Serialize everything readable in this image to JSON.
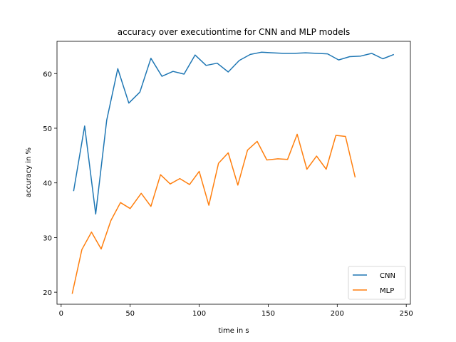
{
  "chart_data": {
    "type": "line",
    "title": "accuracy over executiontime for CNN and MLP models",
    "xlabel": "time in s",
    "ylabel": "accuracy in %",
    "xlim": [
      -3,
      253
    ],
    "ylim": [
      17.8,
      65.9
    ],
    "xticks": [
      0,
      50,
      100,
      150,
      200,
      250
    ],
    "yticks": [
      20,
      30,
      40,
      50,
      60
    ],
    "grid": false,
    "legend_position": "bottom-right",
    "series": [
      {
        "name": "CNN",
        "color": "#1f77b4",
        "x": [
          9,
          17,
          25,
          33,
          41,
          49,
          57,
          65,
          73,
          81,
          89,
          97,
          105,
          113,
          121,
          129,
          137,
          145,
          153,
          161,
          169,
          177,
          185,
          193,
          201,
          209,
          217,
          225,
          233,
          241
        ],
        "y": [
          38.5,
          50.4,
          34.3,
          51.5,
          60.9,
          54.6,
          56.6,
          62.8,
          59.5,
          60.4,
          59.9,
          63.4,
          61.5,
          61.9,
          60.3,
          62.4,
          63.5,
          63.9,
          63.8,
          63.7,
          63.7,
          63.8,
          63.7,
          63.6,
          62.5,
          63.1,
          63.2,
          63.7,
          62.7,
          63.5
        ]
      },
      {
        "name": "MLP",
        "color": "#ff7f0e",
        "x": [
          8,
          15,
          22,
          29,
          36,
          43,
          50,
          58,
          65,
          72,
          79,
          86,
          93,
          100,
          107,
          114,
          121,
          128,
          135,
          142,
          149,
          157,
          164,
          171,
          178,
          185,
          192,
          199,
          206,
          213
        ],
        "y": [
          19.7,
          27.8,
          31.0,
          27.9,
          33.1,
          36.4,
          35.3,
          38.1,
          35.7,
          41.5,
          39.8,
          40.8,
          39.7,
          42.1,
          35.9,
          43.6,
          45.5,
          39.6,
          46.0,
          47.6,
          44.2,
          44.4,
          44.3,
          48.9,
          42.5,
          44.9,
          42.5,
          48.7,
          48.5,
          41.0
        ]
      }
    ]
  }
}
